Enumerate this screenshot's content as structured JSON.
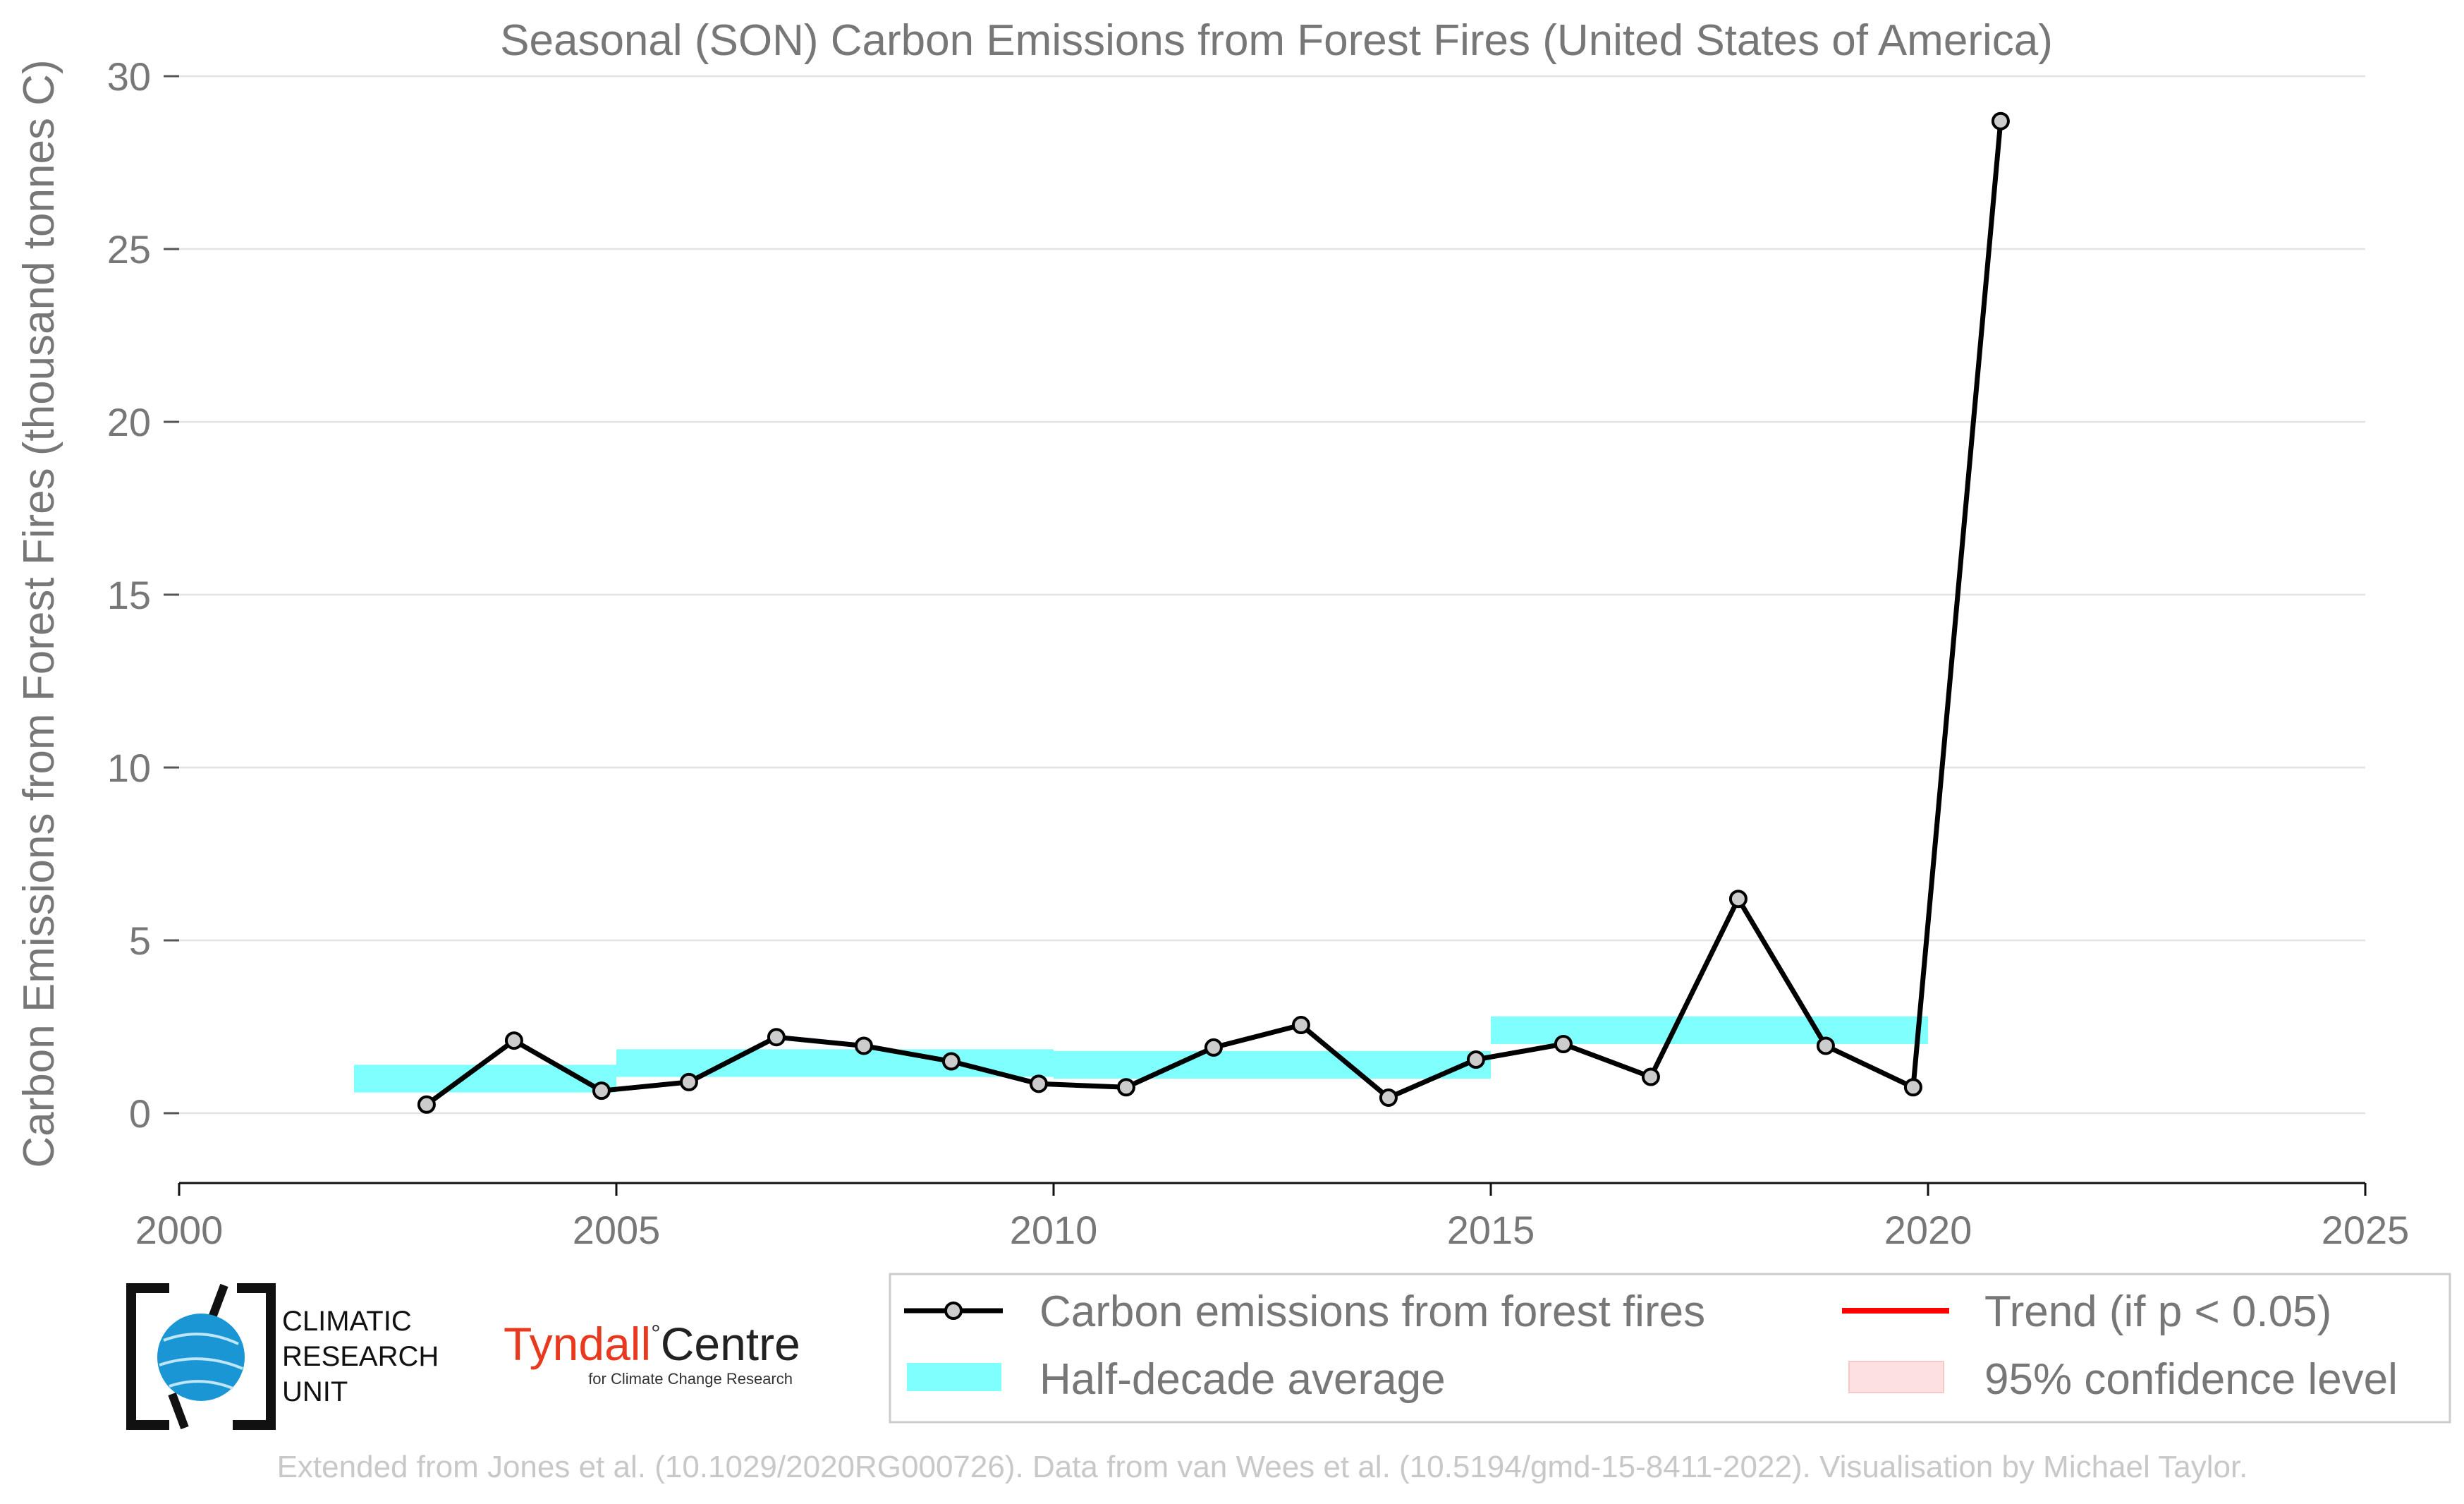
{
  "chart_data": {
    "type": "line",
    "title": "Seasonal (SON) Carbon Emissions from Forest Fires (United States of America)",
    "xlabel": "",
    "ylabel": "Carbon Emissions from Forest Fires (thousand tonnes C)",
    "xlim": [
      2000,
      2025
    ],
    "ylim": [
      -2,
      30
    ],
    "xticks": [
      "2000",
      "2005",
      "2010",
      "2015",
      "2020",
      "2025"
    ],
    "yticks": [
      "0",
      "5",
      "10",
      "15",
      "20",
      "25",
      "30"
    ],
    "grid": "horizontal",
    "legend_placement": "bottom-right",
    "series": [
      {
        "name": "Carbon emissions from forest fires",
        "color": "#000000",
        "marker_fill": "#cccccc",
        "x": [
          2002.83,
          2003.83,
          2004.83,
          2005.83,
          2006.83,
          2007.83,
          2008.83,
          2009.83,
          2010.83,
          2011.83,
          2012.83,
          2013.83,
          2014.83,
          2015.83,
          2016.83,
          2017.83,
          2018.83,
          2019.83,
          2020.83
        ],
        "y": [
          0.25,
          2.1,
          0.65,
          0.9,
          2.2,
          1.95,
          1.5,
          0.85,
          0.75,
          1.9,
          2.55,
          0.45,
          1.55,
          2.0,
          1.05,
          6.2,
          1.95,
          0.75,
          28.7
        ]
      }
    ],
    "half_decade_average": {
      "name": "Half-decade average",
      "color": "#80ffff",
      "segments": [
        {
          "x_start": 2002,
          "x_end": 2005,
          "y": 1.0
        },
        {
          "x_start": 2005,
          "x_end": 2010,
          "y": 1.45
        },
        {
          "x_start": 2010,
          "x_end": 2015,
          "y": 1.4
        },
        {
          "x_start": 2015,
          "x_end": 2020,
          "y": 2.4
        }
      ]
    },
    "legend": [
      {
        "key": "emissions",
        "label": "Carbon emissions from forest fires"
      },
      {
        "key": "average",
        "label": "Half-decade average"
      },
      {
        "key": "trend",
        "label": "Trend (if p < 0.05)",
        "color": "#ff0000"
      },
      {
        "key": "confidence",
        "label": "95% confidence level",
        "color": "#fde0e0"
      }
    ]
  },
  "logos": {
    "cru_lines": [
      "CLIMATIC",
      "RESEARCH",
      "UNIT"
    ],
    "tyndall_name": "Tyndall",
    "tyndall_degree": "°",
    "tyndall_centre": "Centre",
    "tyndall_sub": "for Climate Change Research",
    "tyndall_color": "#e8391f"
  },
  "footer": "Extended from Jones et al. (10.1029/2020RG000726). Data from van Wees et al. (10.5194/gmd-15-8411-2022). Visualisation by Michael Taylor."
}
